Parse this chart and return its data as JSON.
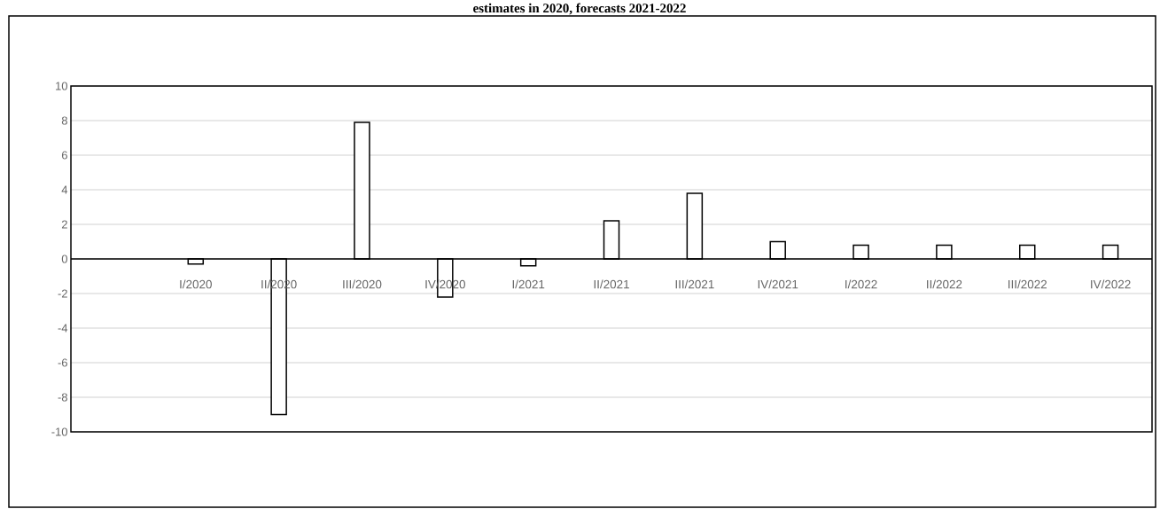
{
  "chart_data": {
    "type": "bar",
    "title": "estimates in 2020, forecasts 2021-2022",
    "categories": [
      null,
      "I/2020",
      "II/2020",
      "III/2020",
      "IV/2020",
      "I/2021",
      "II/2021",
      "III/2021",
      "IV/2021",
      "I/2022",
      "II/2022",
      "III/2022",
      "IV/2022"
    ],
    "values": [
      null,
      -0.3,
      -9.0,
      7.9,
      -2.2,
      -0.4,
      2.2,
      3.8,
      1.0,
      0.8,
      0.8,
      0.8,
      0.8
    ],
    "color": "#ffffff",
    "ylim": [
      -10,
      10
    ],
    "yticks": [
      -10,
      -8,
      -6,
      -4,
      -2,
      0,
      2,
      4,
      6,
      8,
      10
    ],
    "grid": "y"
  }
}
